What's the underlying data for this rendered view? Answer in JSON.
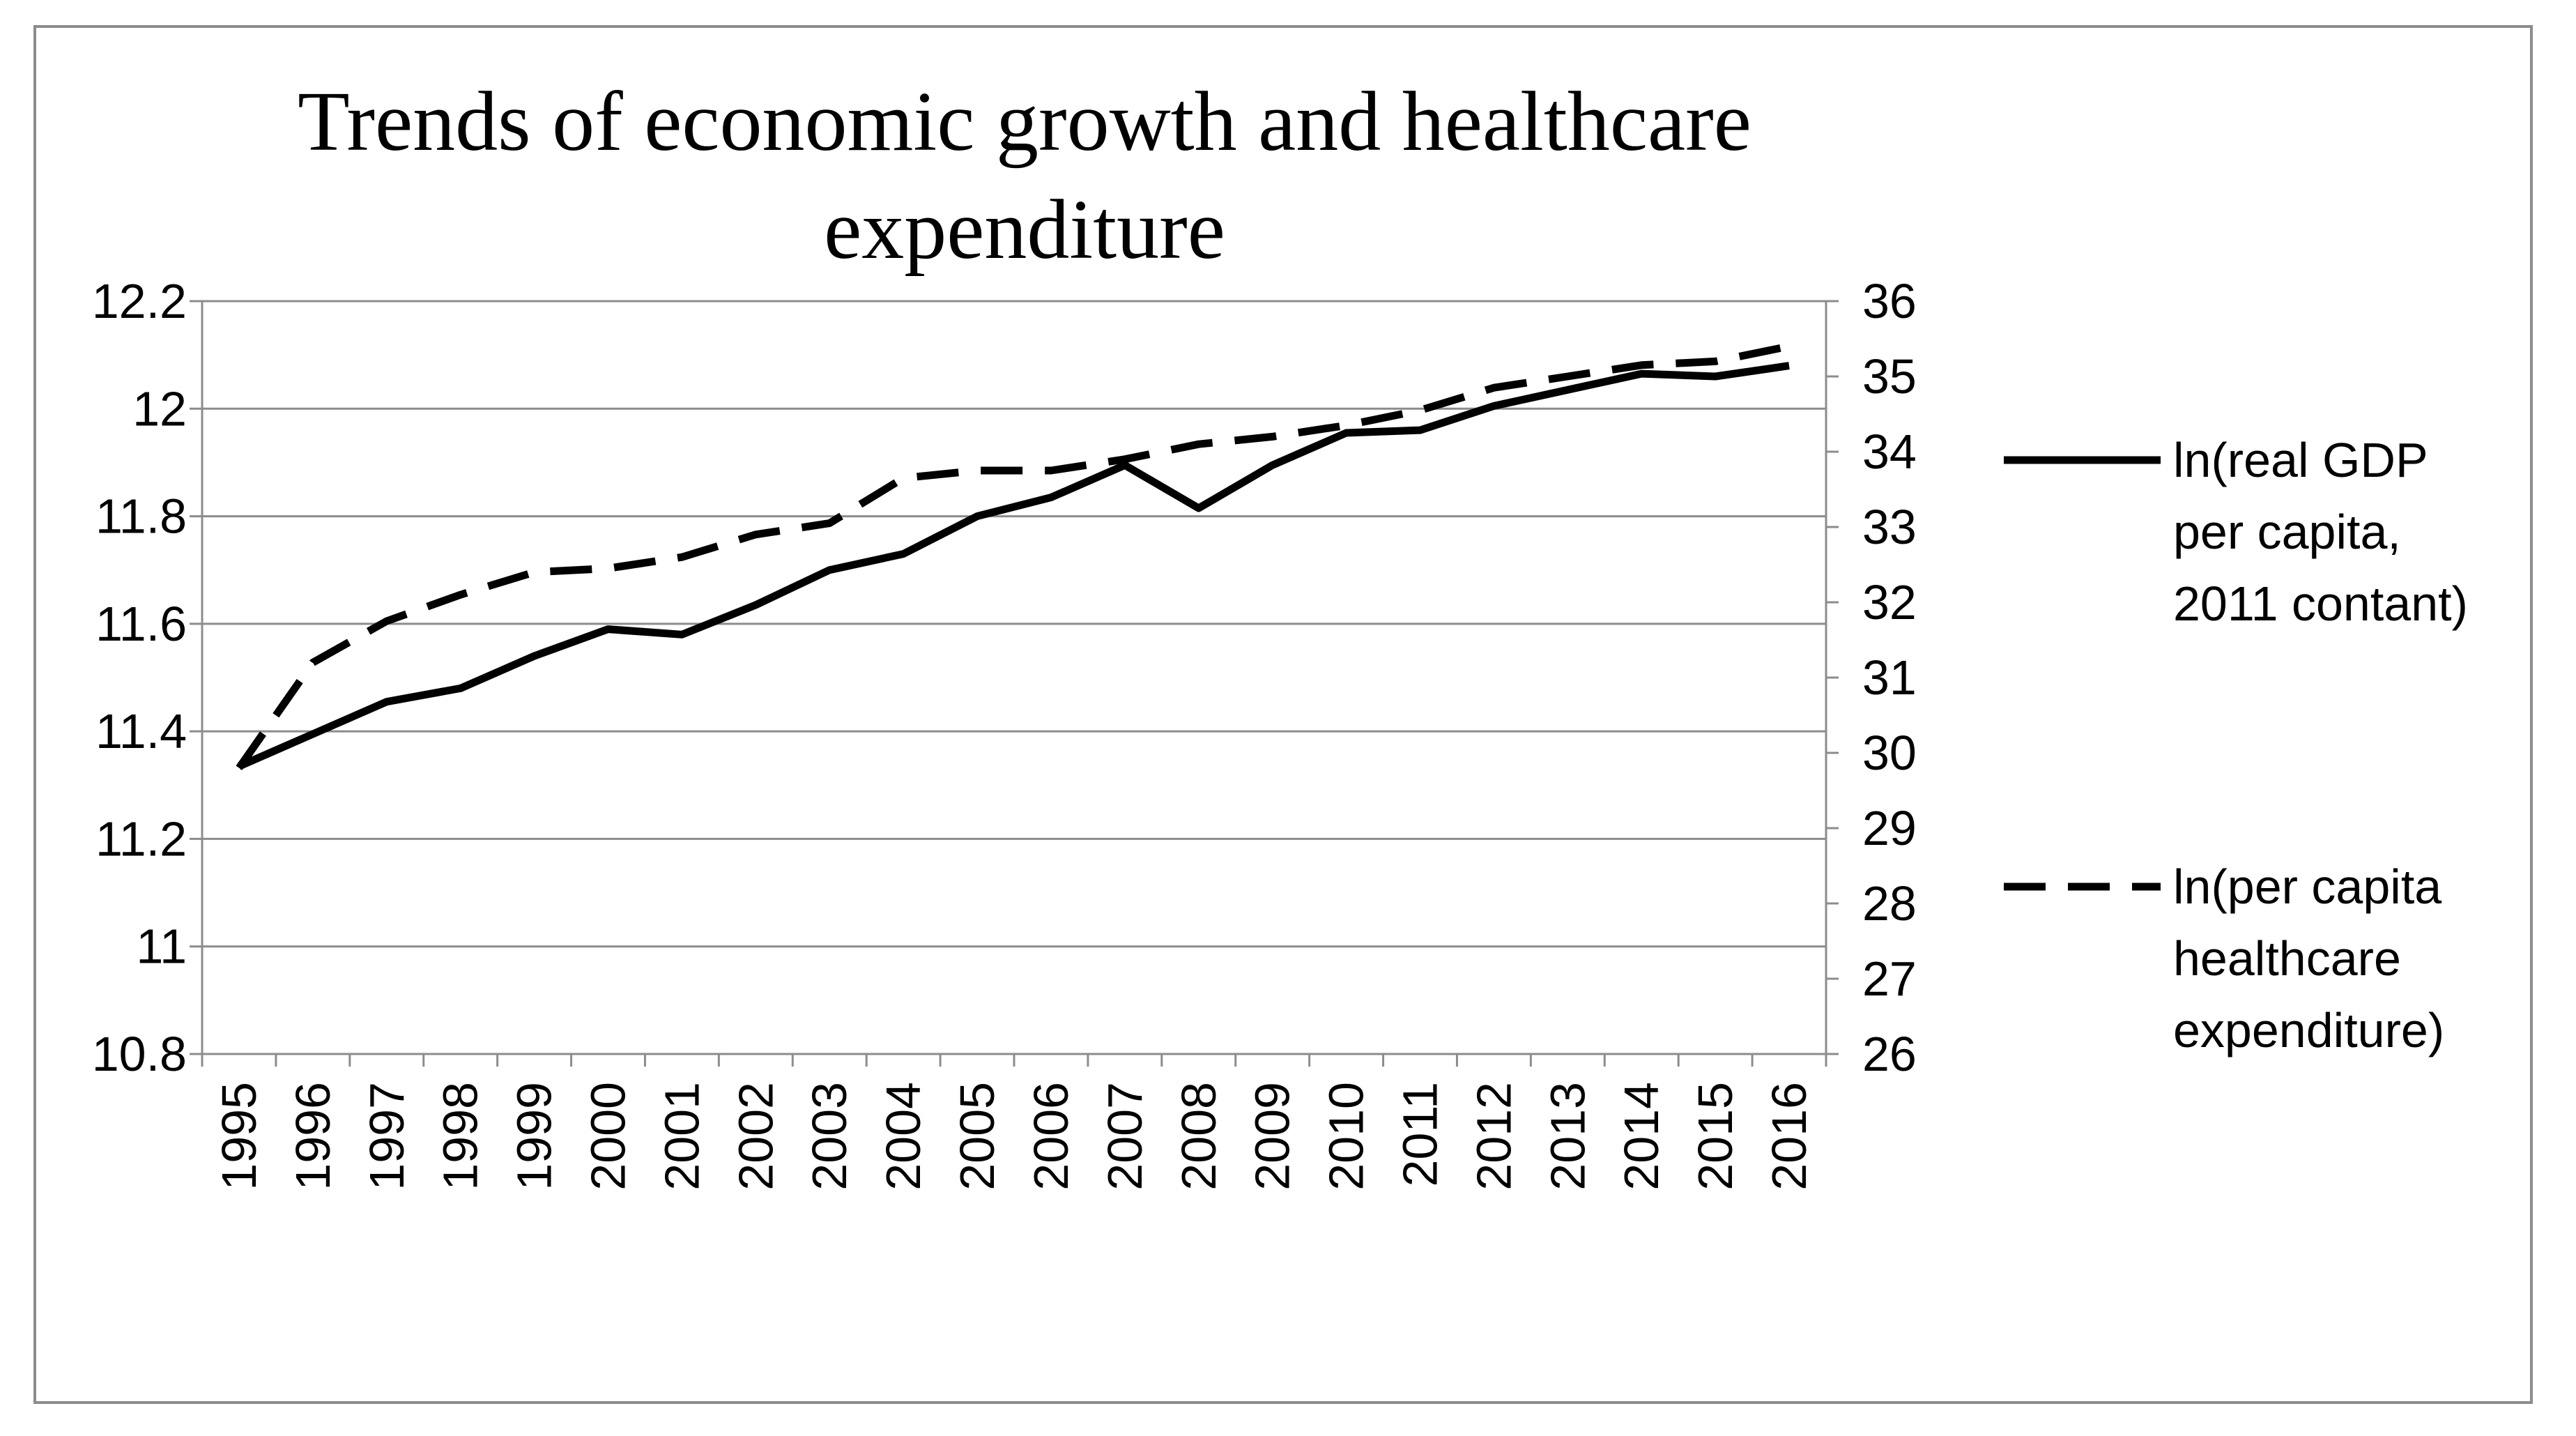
{
  "chart_data": {
    "type": "line",
    "title_lines": [
      "Trends of economic growth and healthcare",
      "expenditure"
    ],
    "categories": [
      "1995",
      "1996",
      "1997",
      "1998",
      "1999",
      "2000",
      "2001",
      "2002",
      "2003",
      "2004",
      "2005",
      "2006",
      "2007",
      "2008",
      "2009",
      "2010",
      "2011",
      "2012",
      "2013",
      "2014",
      "2015",
      "2016"
    ],
    "y_left": {
      "min": 10.8,
      "max": 12.2,
      "step": 0.2,
      "ticks": [
        "10.8",
        "11",
        "11.2",
        "11.4",
        "11.6",
        "11.8",
        "12",
        "12.2"
      ]
    },
    "y_right": {
      "min": 26,
      "max": 36,
      "step": 1,
      "ticks": [
        "26",
        "27",
        "28",
        "29",
        "30",
        "31",
        "32",
        "33",
        "34",
        "35",
        "36"
      ]
    },
    "grid": true,
    "legend_position": "right",
    "series": [
      {
        "name": "ln(real GDP per capita, 2011 contant)",
        "legend_lines": [
          "ln(real GDP",
          "per capita,",
          "2011 contant)"
        ],
        "axis": "left",
        "style": "solid",
        "color": "#000000",
        "values": [
          11.335,
          11.395,
          11.455,
          11.48,
          11.54,
          11.59,
          11.58,
          11.635,
          11.7,
          11.73,
          11.8,
          11.835,
          11.895,
          11.815,
          11.895,
          11.955,
          11.96,
          12.005,
          12.035,
          12.065,
          12.06,
          12.08
        ]
      },
      {
        "name": "ln(per capita healthcare expenditure)",
        "legend_lines": [
          "ln(per capita",
          "healthcare",
          "expenditure)"
        ],
        "axis": "right",
        "style": "dashed",
        "color": "#000000",
        "values": [
          29.8,
          31.2,
          31.75,
          32.1,
          32.4,
          32.45,
          32.6,
          32.9,
          33.05,
          33.65,
          33.75,
          33.75,
          33.9,
          34.1,
          34.2,
          34.35,
          34.55,
          34.85,
          35.0,
          35.15,
          35.2,
          35.4
        ]
      }
    ]
  }
}
